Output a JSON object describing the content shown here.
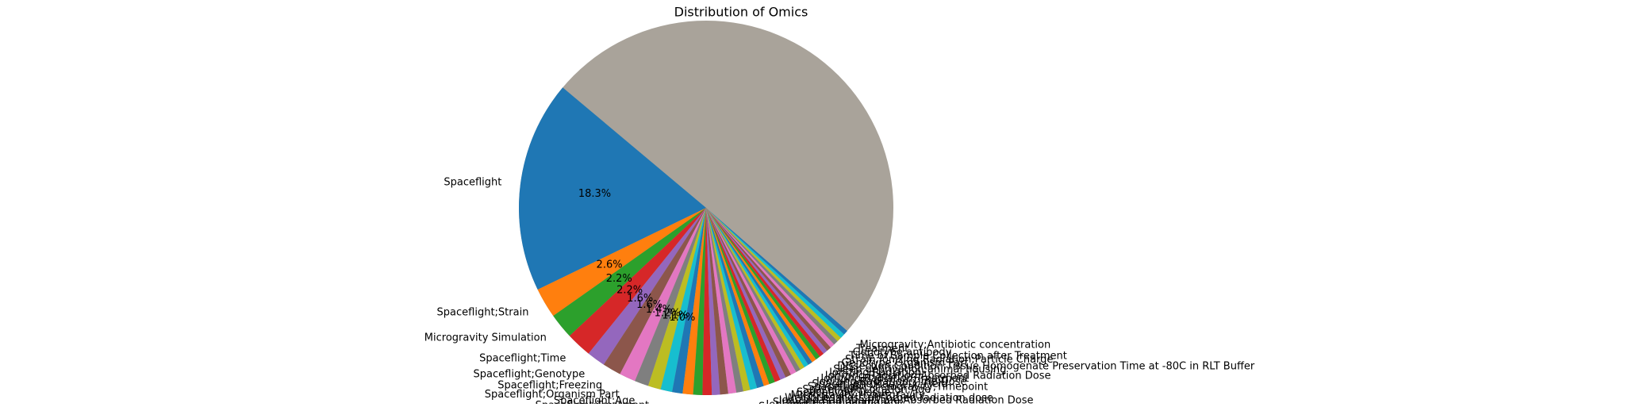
{
  "chart_data": {
    "type": "pie",
    "title": "Distribution of Omics",
    "start_angle": 140,
    "colors": [
      "#1f77b4",
      "#ff7f0e",
      "#2ca02c",
      "#d62728",
      "#9467bd",
      "#8c564b",
      "#e377c2",
      "#7f7f7f",
      "#bcbd22",
      "#17becf"
    ],
    "categories": [
      "Spaceflight",
      "Spaceflight;Strain",
      "Microgravity Simulation",
      "Spaceflight;Time",
      "Spaceflight;Genotype",
      "Spaceflight;Freezing",
      "Spaceflight;Organism Part",
      "Spaceflight;Age",
      "Spaceflight;Treatment",
      "Spaceflight;Duration;Dissection Condition;Euthanasia Location;Ionizing Radiation",
      "Ionizing Radiation;Time of Sample Collection After Treatment",
      "Spaceflight;Dissection Condition",
      "Intracranial Pressure",
      "Dissection Condition;Preservation Method;Order of Preservation",
      "Ionizing Radiation;Time of Sample Collection After Treatment;Genotype",
      "Sample Preservation Method;Time of Sample Collection After Treatment;Sample Storage Time",
      "Spaceflight;Absorbed Radiation Dose",
      "Weightlessness;Simulation",
      "Spaceflight;Altered Gravity",
      "Spaceflight;Sample Location",
      "Ionizing Radiation;Time",
      "Simulated Unloading;Age",
      "Ionizing Radiation;Time;Absorbed Radiation Dose",
      "Weightlessness;absorbed radiation dose",
      "Microgravity;Hypergravity",
      "Spaceflight;Tissue",
      "Spaceflight;Location;Age",
      "Spaceflight;Microgravity;Timepoint",
      "Spaceflight;Magnetic Field",
      "Ionizing Radiation;Time;Dose",
      "Ionizing Radiation;Treatment",
      "Ionizing Radiation;Absorbed Radiation Dose",
      "Ionizing Radiation",
      "Sleep deprivation;animal housing",
      "Dissection Condition;Tissue Homogenate Preservation Time at -80C in RLT Buffer",
      "Genotype;Organism Part",
      "Strain;Ionizing Radiation;Particle Charge",
      "Time of Sample Collection after Treatment",
      "Genotype;antibody",
      "Treatment",
      "Microgravity;Antibiotic concentration"
    ],
    "values": [
      18.3,
      2.6,
      2.2,
      2.2,
      1.6,
      1.6,
      1.4,
      1.2,
      1.1,
      1.0,
      0.9,
      0.9,
      0.8,
      0.8,
      0.7,
      0.7,
      0.7,
      0.6,
      0.6,
      0.6,
      0.6,
      0.5,
      0.5,
      0.5,
      0.5,
      0.5,
      0.5,
      0.4,
      0.4,
      0.4,
      0.4,
      0.4,
      0.4,
      0.4,
      0.4,
      0.4,
      0.4,
      0.4,
      0.4,
      0.4,
      0.4
    ],
    "value_labels": [
      "18.3%",
      "2.6%",
      "2.2%",
      "2.2%",
      "1.6%",
      "1.6%",
      "1.4%",
      "1.2%",
      "1.1%",
      "1.0%",
      null,
      null,
      null,
      null,
      null,
      null,
      null,
      null,
      null,
      null,
      null,
      null,
      null,
      null,
      null,
      null,
      null,
      null,
      null,
      null,
      null,
      null,
      null,
      null,
      null,
      null,
      null,
      null,
      null,
      null,
      null
    ]
  }
}
